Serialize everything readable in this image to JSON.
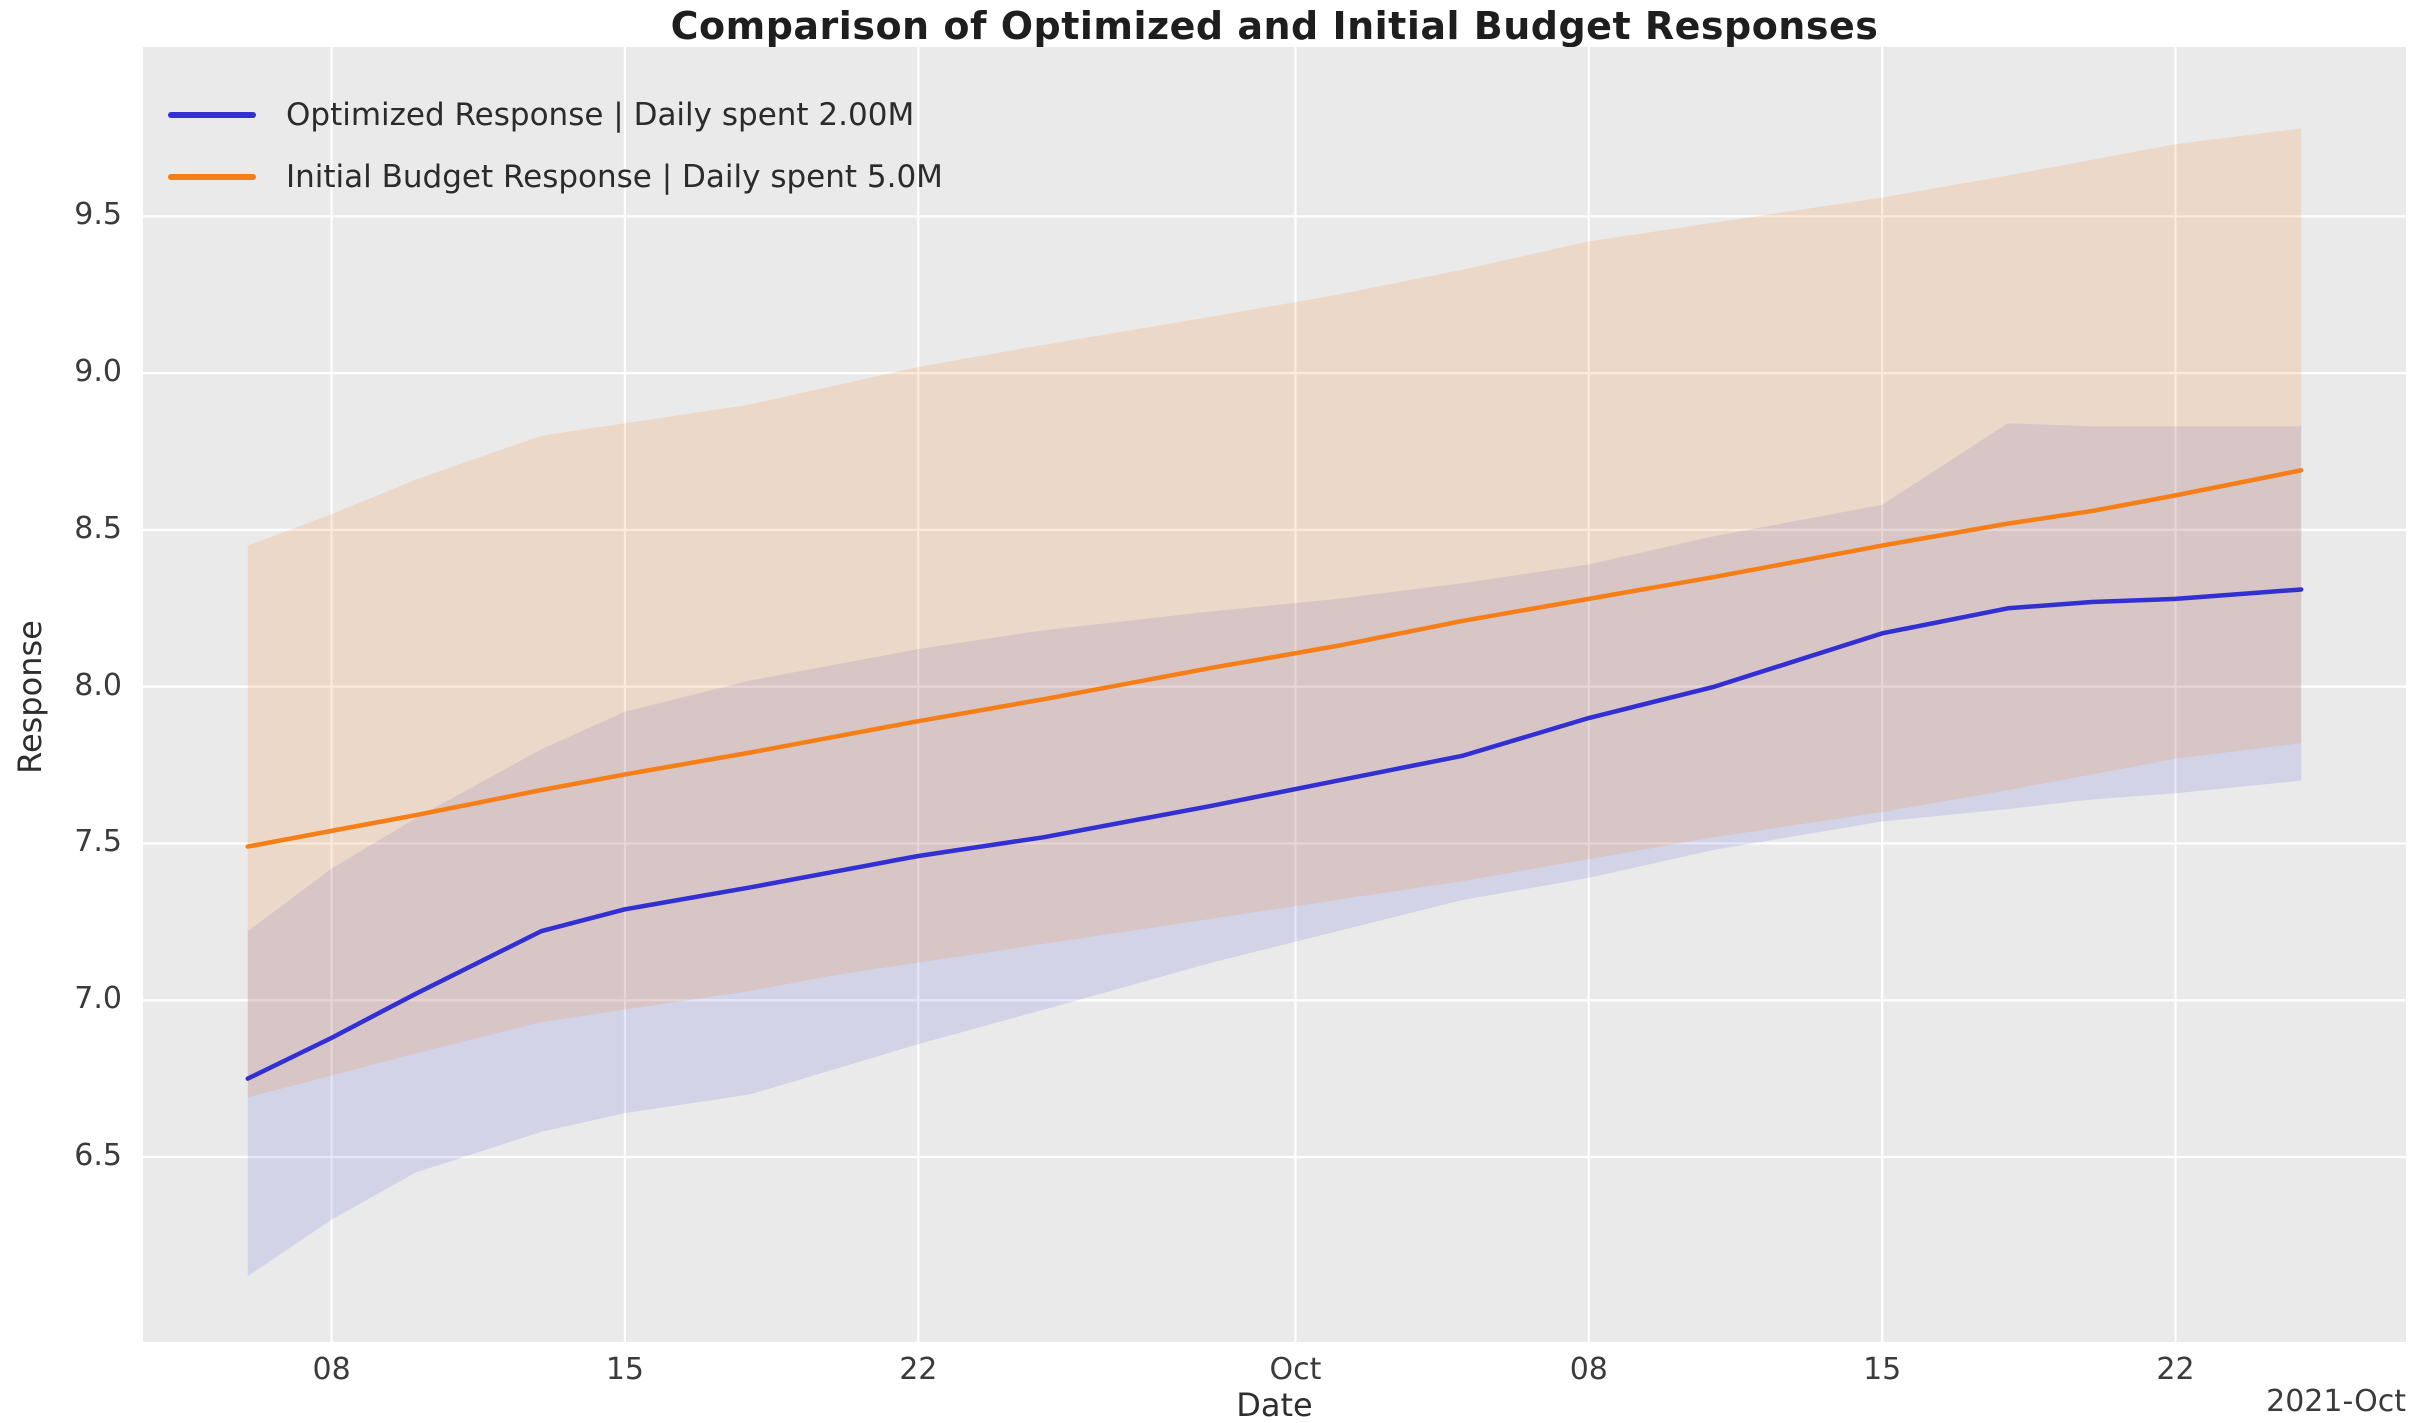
{
  "chart_data": {
    "type": "line",
    "title": "Comparison of Optimized and Initial Budget Responses",
    "xlabel": "Date",
    "ylabel": "Response",
    "x_axis_offset_text": "2021-Oct",
    "x_start_date": "2021-09-06",
    "x_days": [
      0,
      2,
      4,
      7,
      9,
      12,
      14,
      16,
      19,
      23,
      26,
      29,
      32,
      35,
      39,
      42,
      44,
      46,
      49
    ],
    "x_dates": [
      "2021-09-06",
      "2021-09-08",
      "2021-09-10",
      "2021-09-13",
      "2021-09-15",
      "2021-09-18",
      "2021-09-20",
      "2021-09-22",
      "2021-09-25",
      "2021-09-29",
      "2021-10-02",
      "2021-10-05",
      "2021-10-08",
      "2021-10-11",
      "2021-10-15",
      "2021-10-18",
      "2021-10-20",
      "2021-10-22",
      "2021-10-25"
    ],
    "series": [
      {
        "name": "Optimized Response | Daily spent 2.00M",
        "color": "#3230d2",
        "band_opacity": 0.12,
        "values": [
          6.75,
          6.88,
          7.02,
          7.22,
          7.29,
          7.36,
          7.41,
          7.46,
          7.52,
          7.62,
          7.7,
          7.78,
          7.9,
          8.0,
          8.17,
          8.25,
          8.27,
          8.28,
          8.31
        ],
        "band_upper": [
          7.22,
          7.42,
          7.58,
          7.8,
          7.92,
          8.02,
          8.07,
          8.12,
          8.18,
          8.24,
          8.28,
          8.33,
          8.39,
          8.48,
          8.58,
          8.84,
          8.83,
          8.83,
          8.83
        ],
        "band_lower": [
          6.12,
          6.3,
          6.45,
          6.58,
          6.64,
          6.7,
          6.78,
          6.86,
          6.97,
          7.12,
          7.22,
          7.32,
          7.39,
          7.48,
          7.57,
          7.61,
          7.64,
          7.66,
          7.7
        ]
      },
      {
        "name": "Initial Budget Response | Daily spent 5.0M",
        "color": "#f57e17",
        "band_opacity": 0.16,
        "values": [
          7.49,
          7.54,
          7.59,
          7.67,
          7.72,
          7.79,
          7.84,
          7.89,
          7.96,
          8.06,
          8.13,
          8.21,
          8.28,
          8.35,
          8.45,
          8.52,
          8.56,
          8.61,
          8.69
        ],
        "band_upper": [
          8.45,
          8.55,
          8.66,
          8.8,
          8.84,
          8.9,
          8.96,
          9.02,
          9.09,
          9.18,
          9.25,
          9.33,
          9.42,
          9.48,
          9.56,
          9.63,
          9.68,
          9.73,
          9.78
        ],
        "band_lower": [
          6.69,
          6.76,
          6.83,
          6.93,
          6.97,
          7.03,
          7.08,
          7.12,
          7.18,
          7.26,
          7.32,
          7.38,
          7.45,
          7.52,
          7.6,
          7.67,
          7.72,
          7.77,
          7.82
        ]
      }
    ],
    "x_ticks": [
      {
        "day": 2,
        "label": "08"
      },
      {
        "day": 9,
        "label": "15"
      },
      {
        "day": 16,
        "label": "22"
      },
      {
        "day": 25,
        "label": "Oct"
      },
      {
        "day": 32,
        "label": "08"
      },
      {
        "day": 39,
        "label": "15"
      },
      {
        "day": 46,
        "label": "22"
      }
    ],
    "y_ticks": [
      6.5,
      7.0,
      7.5,
      8.0,
      8.5,
      9.0,
      9.5
    ],
    "xlim": [
      -2.5,
      51.5
    ],
    "ylim": [
      5.91,
      10.04
    ],
    "grid": true,
    "legend_position": "upper left",
    "plot_bg": "#eaeaea",
    "grid_color": "#ffffff",
    "line_width": 4.5
  }
}
